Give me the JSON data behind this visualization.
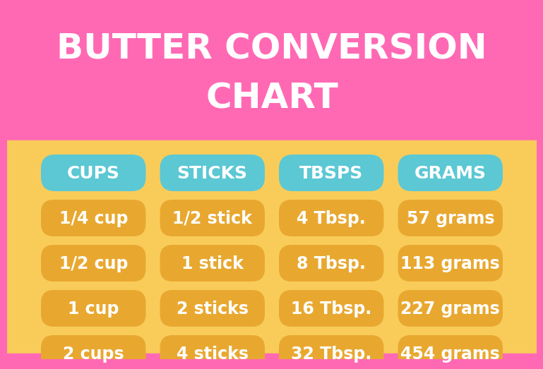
{
  "title_line1": "BUTTER CONVERSION",
  "title_line2": "CHART",
  "title_color": "#FFFFFF",
  "title_bg_color": "#FF69B4",
  "table_bg_color": "#F9CC5A",
  "header_bg_color": "#5BC8D4",
  "header_text_color": "#FFFFFF",
  "cell_bg_color": "#E8A830",
  "cell_text_color": "#FFFFFF",
  "bottom_strip_color": "#FF69B4",
  "headers": [
    "CUPS",
    "STICKS",
    "TBSPS",
    "GRAMS"
  ],
  "rows": [
    [
      "1/4 cup",
      "1/2 stick",
      "4 Tbsp.",
      "57 grams"
    ],
    [
      "1/2 cup",
      "1 stick",
      "8 Tbsp.",
      "113 grams"
    ],
    [
      "1 cup",
      "2 sticks",
      "16 Tbsp.",
      "227 grams"
    ],
    [
      "2 cups",
      "4 sticks",
      "32 Tbsp.",
      "454 grams"
    ]
  ],
  "title_fontsize": 36,
  "header_fontsize": 18,
  "cell_fontsize": 17,
  "fig_width": 7.5,
  "fig_height": 5.0
}
